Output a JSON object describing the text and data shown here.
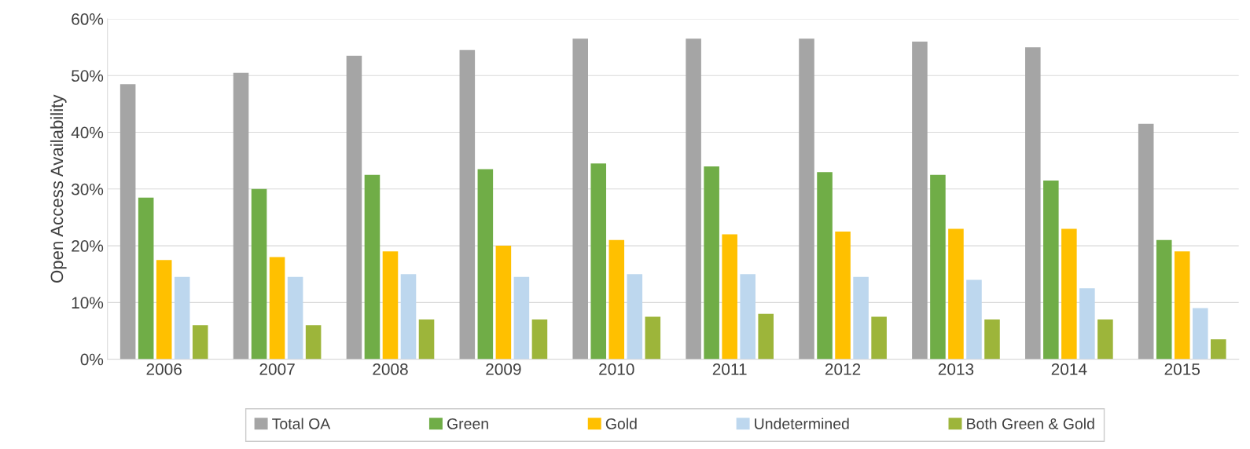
{
  "chart_data": {
    "type": "bar",
    "ylabel": "Open Access Availability",
    "categories": [
      "2006",
      "2007",
      "2008",
      "2009",
      "2010",
      "2011",
      "2012",
      "2013",
      "2014",
      "2015"
    ],
    "series": [
      {
        "name": "Total OA",
        "color": "#a5a5a5",
        "values": [
          48.5,
          50.5,
          53.5,
          54.5,
          56.5,
          56.5,
          56.5,
          56,
          55,
          41.5
        ]
      },
      {
        "name": "Green",
        "color": "#70ad47",
        "values": [
          28.5,
          30,
          32.5,
          33.5,
          34.5,
          34,
          33,
          32.5,
          31.5,
          21
        ]
      },
      {
        "name": "Gold",
        "color": "#ffc000",
        "values": [
          17.5,
          18,
          19,
          20,
          21,
          22,
          22.5,
          23,
          23,
          19
        ]
      },
      {
        "name": "Undetermined",
        "color": "#bdd7ee",
        "values": [
          14.5,
          14.5,
          15,
          14.5,
          15,
          15,
          14.5,
          14,
          12.5,
          9
        ]
      },
      {
        "name": "Both Green & Gold",
        "color": "#9db53a",
        "values": [
          6,
          6,
          7,
          7,
          7.5,
          8,
          7.5,
          7,
          7,
          3.5
        ]
      }
    ],
    "ylim": [
      0,
      60
    ],
    "yticks": [
      {
        "value": 0,
        "label": "0%"
      },
      {
        "value": 10,
        "label": "10%"
      },
      {
        "value": 20,
        "label": "20%"
      },
      {
        "value": 30,
        "label": "30%"
      },
      {
        "value": 40,
        "label": "40%"
      },
      {
        "value": 50,
        "label": "50%"
      },
      {
        "value": 60,
        "label": "60%"
      }
    ],
    "grid": "y",
    "legend": "bottom"
  }
}
